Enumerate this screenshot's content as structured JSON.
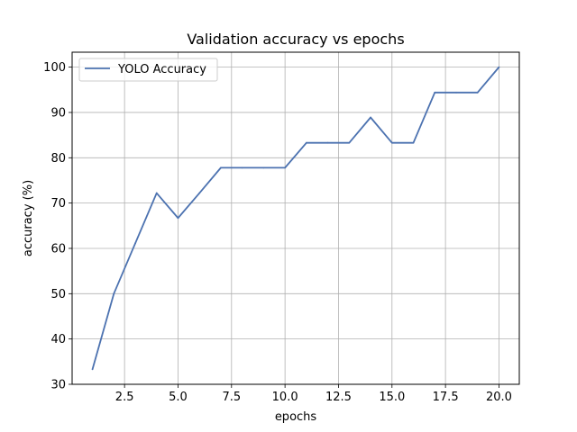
{
  "chart_data": {
    "type": "line",
    "title": "Validation accuracy vs epochs",
    "xlabel": "epochs",
    "ylabel": "accuracy (%)",
    "xlim": [
      0.05,
      20.95
    ],
    "ylim": [
      30,
      103.3
    ],
    "grid": true,
    "legend_position": "top-left",
    "x_ticks": [
      2.5,
      5.0,
      7.5,
      10.0,
      12.5,
      15.0,
      17.5,
      20.0
    ],
    "x_tick_labels": [
      "2.5",
      "5.0",
      "7.5",
      "10.0",
      "12.5",
      "15.0",
      "17.5",
      "20.0"
    ],
    "y_ticks": [
      30,
      40,
      50,
      60,
      70,
      80,
      90,
      100
    ],
    "y_tick_labels": [
      "30",
      "40",
      "50",
      "60",
      "70",
      "80",
      "90",
      "100"
    ],
    "series": [
      {
        "name": "YOLO Accuracy",
        "color": "#4c72b0",
        "x": [
          1,
          2,
          3,
          4,
          5,
          6,
          7,
          8,
          9,
          10,
          11,
          12,
          13,
          14,
          15,
          16,
          17,
          18,
          19,
          20
        ],
        "y": [
          33.3,
          50.0,
          61.1,
          72.2,
          66.7,
          72.2,
          77.8,
          77.8,
          77.8,
          77.8,
          83.3,
          83.3,
          83.3,
          88.9,
          83.3,
          83.3,
          94.4,
          94.4,
          94.4,
          100.0
        ]
      }
    ]
  }
}
